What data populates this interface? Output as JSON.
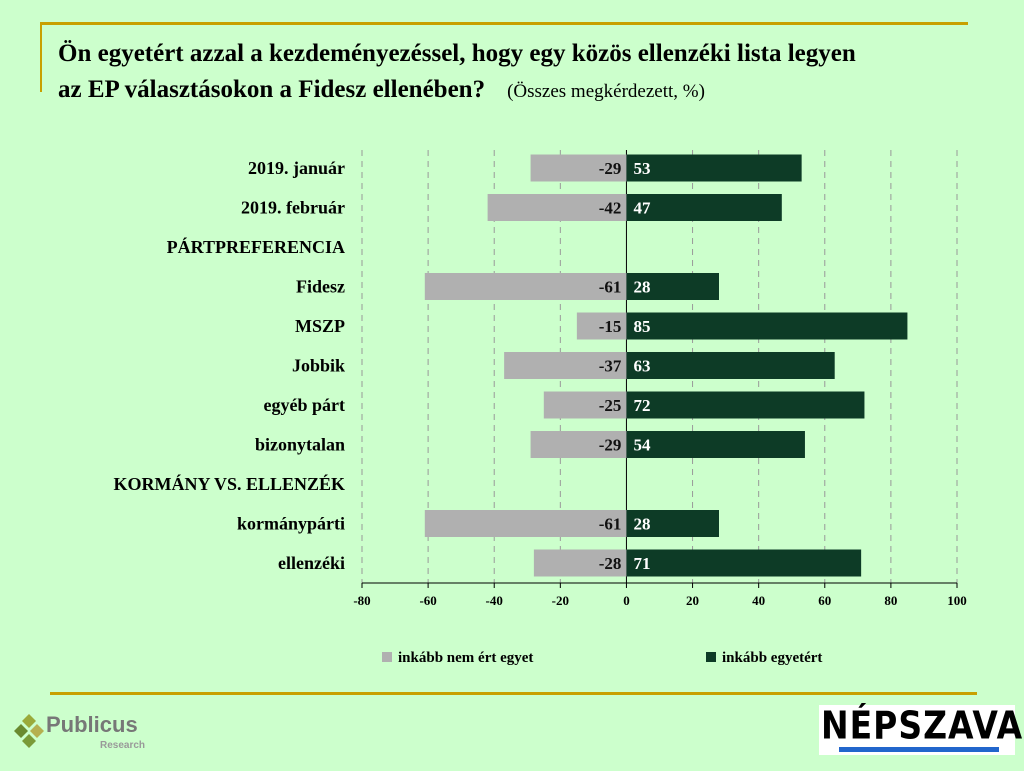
{
  "title": "Ön egyetért azzal a kezdeményezéssel, hogy egy közös ellenzéki lista legyen az EP választásokon a Fidesz ellenében?",
  "title_line1": "Ön egyetért azzal a kezdeményezéssel, hogy egy közös ellenzéki lista legyen",
  "title_line2": "az EP választásokon a Fidesz ellenében?",
  "subtitle": "(Összes megkérdezett, %)",
  "logos": {
    "publicus": "Publicus",
    "publicus_sub": "Research",
    "nepszava": "NÉPSZAVA"
  },
  "chart_data": {
    "type": "bar",
    "orientation": "horizontal-diverging",
    "categories": [
      "2019. január",
      "2019. február",
      "PÁRTPREFERENCIA",
      "Fidesz",
      "MSZP",
      "Jobbik",
      "egyéb párt",
      "bizonytalan",
      "KORMÁNY VS. ELLENZÉK",
      "kormánypárti",
      "ellenzéki"
    ],
    "series": [
      {
        "name": "inkább nem ért egyet",
        "color": "#b0b0b0",
        "values": [
          -29,
          -42,
          null,
          -61,
          -15,
          -37,
          -25,
          -29,
          null,
          -61,
          -28
        ]
      },
      {
        "name": "inkább egyetért",
        "color": "#0d3b26",
        "values": [
          53,
          47,
          null,
          28,
          85,
          63,
          72,
          54,
          null,
          28,
          71
        ]
      }
    ],
    "xlim": [
      -80,
      100
    ],
    "xticks": [
      -80,
      -60,
      -40,
      -20,
      0,
      20,
      40,
      60,
      80,
      100
    ],
    "grid": true,
    "legend": "bottom"
  }
}
